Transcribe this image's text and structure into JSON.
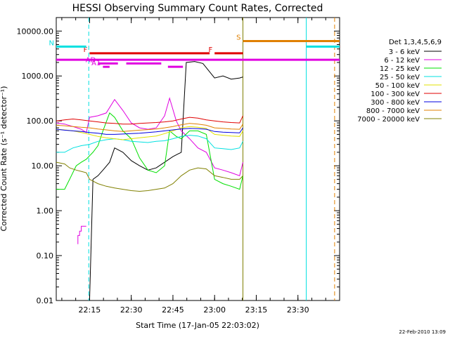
{
  "chart_data": {
    "type": "line",
    "title": "HESSI Observing Summary Count Rates, Corrected",
    "xlabel": "Start Time (17-Jan-05 22:03:02)",
    "ylabel": "Corrected Count Rate (s⁻¹ detector⁻¹)",
    "date_stamp": "22-Feb-2010 13:09",
    "yscale": "log",
    "ylim": [
      0.01,
      20000
    ],
    "xlim_minutes": [
      22.05,
      23.75
    ],
    "x_ticks": [
      "22:15",
      "22:30",
      "22:45",
      "23:00",
      "23:15",
      "23:30"
    ],
    "y_ticks": [
      "0.01",
      "0.10",
      "1.00",
      "10.00",
      "100.00",
      "1000.00",
      "10000.00"
    ],
    "legend": {
      "header": "Det 1,3,4,5,6,9",
      "placement": "right"
    },
    "series": [
      {
        "name": "3 - 6 keV",
        "color": "#000000",
        "points": [
          [
            22.25,
            0.01
          ],
          [
            22.27,
            5
          ],
          [
            22.3,
            6
          ],
          [
            22.33,
            8
          ],
          [
            22.37,
            12
          ],
          [
            22.4,
            25
          ],
          [
            22.45,
            20
          ],
          [
            22.5,
            13
          ],
          [
            22.55,
            10
          ],
          [
            22.6,
            8
          ],
          [
            22.65,
            9
          ],
          [
            22.7,
            12
          ],
          [
            22.75,
            16
          ],
          [
            22.8,
            20
          ],
          [
            22.83,
            2000
          ],
          [
            22.88,
            2100
          ],
          [
            22.93,
            1900
          ],
          [
            23.0,
            900
          ],
          [
            23.05,
            1000
          ],
          [
            23.1,
            850
          ],
          [
            23.15,
            900
          ],
          [
            23.17,
            950
          ]
        ]
      },
      {
        "name": "6 - 12 keV",
        "color": "#e000e0",
        "points": [
          [
            22.05,
            90
          ],
          [
            22.1,
            85
          ],
          [
            22.15,
            75
          ],
          [
            22.2,
            65
          ],
          [
            22.23,
            55
          ],
          [
            22.25,
            120
          ],
          [
            22.3,
            130
          ],
          [
            22.35,
            150
          ],
          [
            22.4,
            300
          ],
          [
            22.45,
            170
          ],
          [
            22.5,
            90
          ],
          [
            22.55,
            70
          ],
          [
            22.6,
            65
          ],
          [
            22.65,
            70
          ],
          [
            22.7,
            130
          ],
          [
            22.73,
            320
          ],
          [
            22.77,
            100
          ],
          [
            22.8,
            60
          ],
          [
            22.85,
            40
          ],
          [
            22.9,
            25
          ],
          [
            22.95,
            20
          ],
          [
            23.0,
            9
          ],
          [
            23.05,
            8
          ],
          [
            23.1,
            7
          ],
          [
            23.15,
            6
          ],
          [
            23.17,
            12
          ]
        ]
      },
      {
        "name": "12 - 25 keV",
        "color": "#00e000",
        "points": [
          [
            22.05,
            3
          ],
          [
            22.1,
            3
          ],
          [
            22.13,
            5
          ],
          [
            22.17,
            10
          ],
          [
            22.2,
            12
          ],
          [
            22.23,
            14
          ],
          [
            22.27,
            20
          ],
          [
            22.3,
            28
          ],
          [
            22.33,
            60
          ],
          [
            22.37,
            150
          ],
          [
            22.4,
            120
          ],
          [
            22.45,
            60
          ],
          [
            22.5,
            40
          ],
          [
            22.55,
            15
          ],
          [
            22.6,
            8
          ],
          [
            22.65,
            7
          ],
          [
            22.7,
            10
          ],
          [
            22.73,
            60
          ],
          [
            22.77,
            45
          ],
          [
            22.8,
            40
          ],
          [
            22.85,
            60
          ],
          [
            22.9,
            60
          ],
          [
            22.95,
            50
          ],
          [
            23.0,
            5
          ],
          [
            23.05,
            4
          ],
          [
            23.1,
            3.5
          ],
          [
            23.15,
            3
          ],
          [
            23.17,
            6
          ]
        ]
      },
      {
        "name": "25 - 50 keV",
        "color": "#00e0e0",
        "points": [
          [
            22.05,
            20
          ],
          [
            22.1,
            20
          ],
          [
            22.15,
            25
          ],
          [
            22.2,
            28
          ],
          [
            22.25,
            30
          ],
          [
            22.3,
            35
          ],
          [
            22.35,
            38
          ],
          [
            22.4,
            40
          ],
          [
            22.45,
            38
          ],
          [
            22.5,
            35
          ],
          [
            22.55,
            34
          ],
          [
            22.6,
            33
          ],
          [
            22.65,
            35
          ],
          [
            22.7,
            36
          ],
          [
            22.75,
            40
          ],
          [
            22.8,
            45
          ],
          [
            22.85,
            48
          ],
          [
            22.9,
            46
          ],
          [
            22.95,
            40
          ],
          [
            23.0,
            25
          ],
          [
            23.05,
            24
          ],
          [
            23.1,
            23
          ],
          [
            23.15,
            25
          ],
          [
            23.17,
            35
          ]
        ]
      },
      {
        "name": "50 - 100 keV",
        "color": "#e0e000",
        "points": [
          [
            22.05,
            65
          ],
          [
            22.1,
            63
          ],
          [
            22.15,
            60
          ],
          [
            22.2,
            55
          ],
          [
            22.25,
            50
          ],
          [
            22.3,
            45
          ],
          [
            22.35,
            42
          ],
          [
            22.4,
            40
          ],
          [
            22.45,
            38
          ],
          [
            22.5,
            40
          ],
          [
            22.55,
            42
          ],
          [
            22.6,
            44
          ],
          [
            22.65,
            46
          ],
          [
            22.7,
            52
          ],
          [
            22.75,
            60
          ],
          [
            22.8,
            70
          ],
          [
            22.85,
            75
          ],
          [
            22.9,
            72
          ],
          [
            22.95,
            68
          ],
          [
            23.0,
            50
          ],
          [
            23.05,
            48
          ],
          [
            23.1,
            46
          ],
          [
            23.15,
            45
          ],
          [
            23.17,
            60
          ]
        ]
      },
      {
        "name": "100 - 300 keV",
        "color": "#e00000",
        "points": [
          [
            22.05,
            100
          ],
          [
            22.1,
            105
          ],
          [
            22.15,
            110
          ],
          [
            22.2,
            105
          ],
          [
            22.25,
            100
          ],
          [
            22.3,
            95
          ],
          [
            22.35,
            90
          ],
          [
            22.4,
            88
          ],
          [
            22.45,
            85
          ],
          [
            22.5,
            85
          ],
          [
            22.55,
            88
          ],
          [
            22.6,
            90
          ],
          [
            22.65,
            92
          ],
          [
            22.7,
            95
          ],
          [
            22.75,
            100
          ],
          [
            22.8,
            110
          ],
          [
            22.85,
            120
          ],
          [
            22.9,
            115
          ],
          [
            22.95,
            105
          ],
          [
            23.0,
            100
          ],
          [
            23.05,
            95
          ],
          [
            23.1,
            92
          ],
          [
            23.15,
            90
          ],
          [
            23.17,
            130
          ]
        ]
      },
      {
        "name": "300 - 800 keV",
        "color": "#0000e0",
        "points": [
          [
            22.05,
            65
          ],
          [
            22.1,
            62
          ],
          [
            22.15,
            60
          ],
          [
            22.2,
            58
          ],
          [
            22.25,
            55
          ],
          [
            22.3,
            53
          ],
          [
            22.35,
            50
          ],
          [
            22.4,
            50
          ],
          [
            22.45,
            51
          ],
          [
            22.5,
            52
          ],
          [
            22.55,
            53
          ],
          [
            22.6,
            55
          ],
          [
            22.65,
            57
          ],
          [
            22.7,
            60
          ],
          [
            22.75,
            63
          ],
          [
            22.8,
            66
          ],
          [
            22.85,
            68
          ],
          [
            22.9,
            67
          ],
          [
            22.95,
            65
          ],
          [
            23.0,
            58
          ],
          [
            23.05,
            56
          ],
          [
            23.1,
            55
          ],
          [
            23.15,
            54
          ],
          [
            23.17,
            70
          ]
        ]
      },
      {
        "name": "800 - 7000 keV",
        "color": "#e08000",
        "points": [
          [
            22.05,
            80
          ],
          [
            22.1,
            78
          ],
          [
            22.15,
            75
          ],
          [
            22.2,
            72
          ],
          [
            22.25,
            70
          ],
          [
            22.3,
            66
          ],
          [
            22.35,
            63
          ],
          [
            22.4,
            60
          ],
          [
            22.45,
            58
          ],
          [
            22.5,
            60
          ],
          [
            22.55,
            62
          ],
          [
            22.6,
            64
          ],
          [
            22.65,
            66
          ],
          [
            22.7,
            70
          ],
          [
            22.75,
            75
          ],
          [
            22.8,
            82
          ],
          [
            22.85,
            88
          ],
          [
            22.9,
            85
          ],
          [
            22.95,
            80
          ],
          [
            23.0,
            70
          ],
          [
            23.05,
            68
          ],
          [
            23.1,
            66
          ],
          [
            23.15,
            65
          ],
          [
            23.17,
            85
          ]
        ]
      },
      {
        "name": "7000 - 20000 keV",
        "color": "#808000",
        "points": [
          [
            22.05,
            12
          ],
          [
            22.1,
            11
          ],
          [
            22.13,
            9
          ],
          [
            22.17,
            8
          ],
          [
            22.2,
            7.5
          ],
          [
            22.23,
            7
          ],
          [
            22.25,
            5
          ],
          [
            22.3,
            4
          ],
          [
            22.35,
            3.5
          ],
          [
            22.4,
            3.2
          ],
          [
            22.45,
            3
          ],
          [
            22.5,
            2.8
          ],
          [
            22.55,
            2.7
          ],
          [
            22.6,
            2.8
          ],
          [
            22.65,
            3
          ],
          [
            22.7,
            3.2
          ],
          [
            22.75,
            4
          ],
          [
            22.8,
            6
          ],
          [
            22.85,
            8
          ],
          [
            22.9,
            9
          ],
          [
            22.95,
            8.5
          ],
          [
            23.0,
            6
          ],
          [
            23.05,
            5.5
          ],
          [
            23.1,
            5
          ],
          [
            23.15,
            5
          ],
          [
            23.17,
            6
          ]
        ]
      },
      {
        "name": "",
        "color": "#e000e0",
        "points": [
          [
            22.18,
            0.18
          ],
          [
            22.18,
            0.28
          ],
          [
            22.19,
            0.28
          ],
          [
            22.19,
            0.35
          ],
          [
            22.2,
            0.35
          ],
          [
            22.2,
            0.45
          ],
          [
            22.23,
            0.45
          ]
        ]
      }
    ],
    "flag_bars": [
      {
        "label": "F",
        "color": "#e00000",
        "y": 3200,
        "start": 22.25,
        "end": 22.97
      },
      {
        "label": "F",
        "color": "#e00000",
        "y": 3200,
        "start": 23.0,
        "end": 23.17
      },
      {
        "label": "",
        "color": "#e000e0",
        "y": 2300,
        "start": 22.05,
        "end": 23.75
      },
      {
        "label": "AD",
        "color": "#e000e0",
        "y": 1900,
        "start": 22.3,
        "end": 22.42
      },
      {
        "label": "",
        "color": "#e000e0",
        "y": 1900,
        "start": 22.47,
        "end": 22.68
      },
      {
        "label": "A1",
        "color": "#e000e0",
        "y": 1600,
        "start": 22.33,
        "end": 22.37
      },
      {
        "label": "",
        "color": "#e000e0",
        "y": 1600,
        "start": 22.72,
        "end": 22.81
      },
      {
        "label": "N",
        "color": "#00e0e0",
        "y": 4500,
        "start": 22.05,
        "end": 22.23
      },
      {
        "label": "",
        "color": "#00e0e0",
        "y": 4500,
        "start": 23.55,
        "end": 23.75
      },
      {
        "label": "S",
        "color": "#e08000",
        "y": 6000,
        "start": 23.17,
        "end": 23.75
      }
    ],
    "vlines": [
      {
        "x": 22.245,
        "color": "#00e0e0",
        "dashed": true
      },
      {
        "x": 23.17,
        "color": "#808000",
        "dashed": false
      },
      {
        "x": 23.55,
        "color": "#00e0e0",
        "dashed": false
      },
      {
        "x": 23.72,
        "color": "#e08000",
        "dashed": true
      }
    ]
  }
}
